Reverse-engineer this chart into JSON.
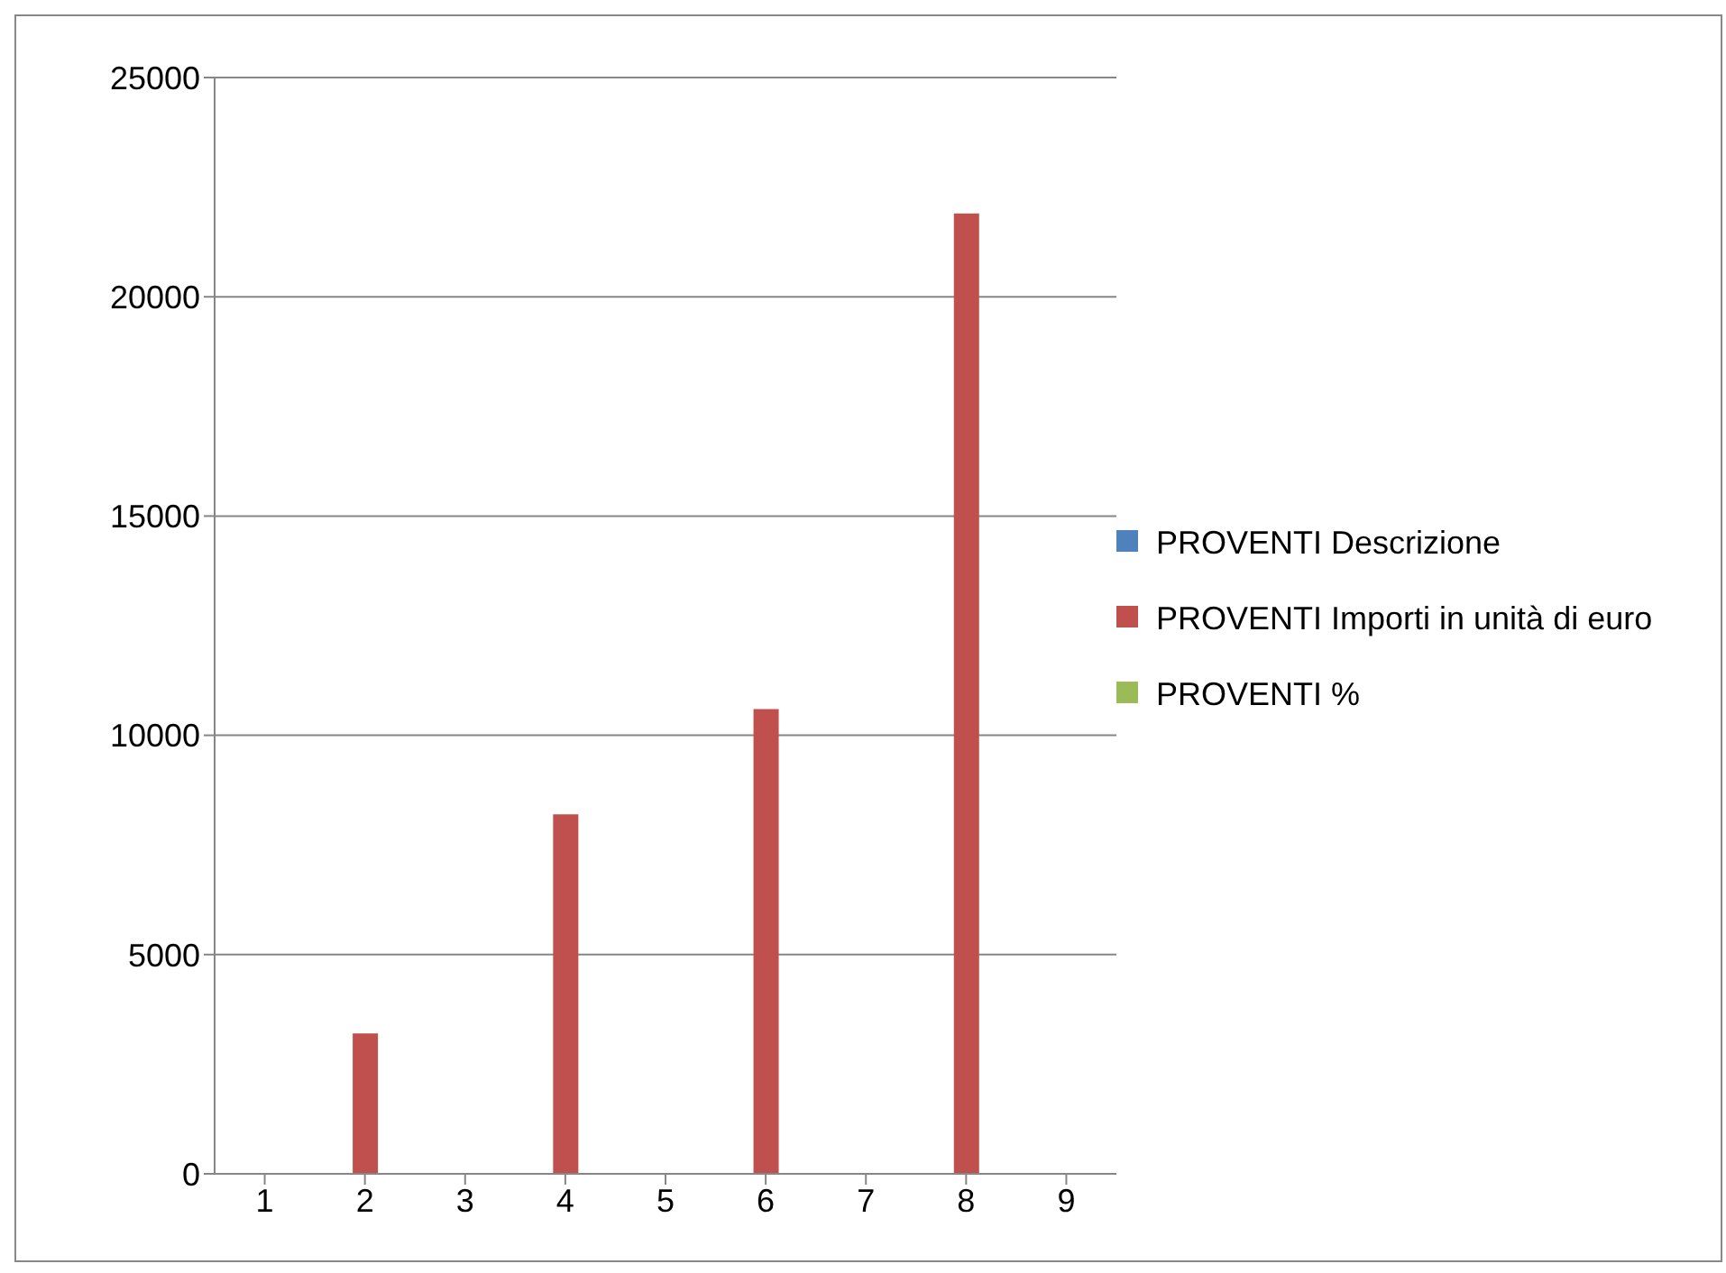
{
  "chart_data": {
    "type": "bar",
    "categories": [
      "1",
      "2",
      "3",
      "4",
      "5",
      "6",
      "7",
      "8",
      "9"
    ],
    "series": [
      {
        "name": "PROVENTI Descrizione",
        "color": "#4f81bd",
        "values": [
          null,
          null,
          null,
          null,
          null,
          null,
          null,
          null,
          null
        ]
      },
      {
        "name": "PROVENTI Importi in unità di euro",
        "color": "#c0504d",
        "values": [
          null,
          3200,
          null,
          8200,
          null,
          10600,
          null,
          21900,
          null
        ]
      },
      {
        "name": "PROVENTI %",
        "color": "#9bbb59",
        "values": [
          null,
          null,
          null,
          null,
          null,
          null,
          null,
          null,
          null
        ]
      }
    ],
    "ylim": [
      0,
      25000
    ],
    "yticks": [
      0,
      5000,
      10000,
      15000,
      20000,
      25000
    ],
    "grid": "y",
    "legend": "right"
  }
}
